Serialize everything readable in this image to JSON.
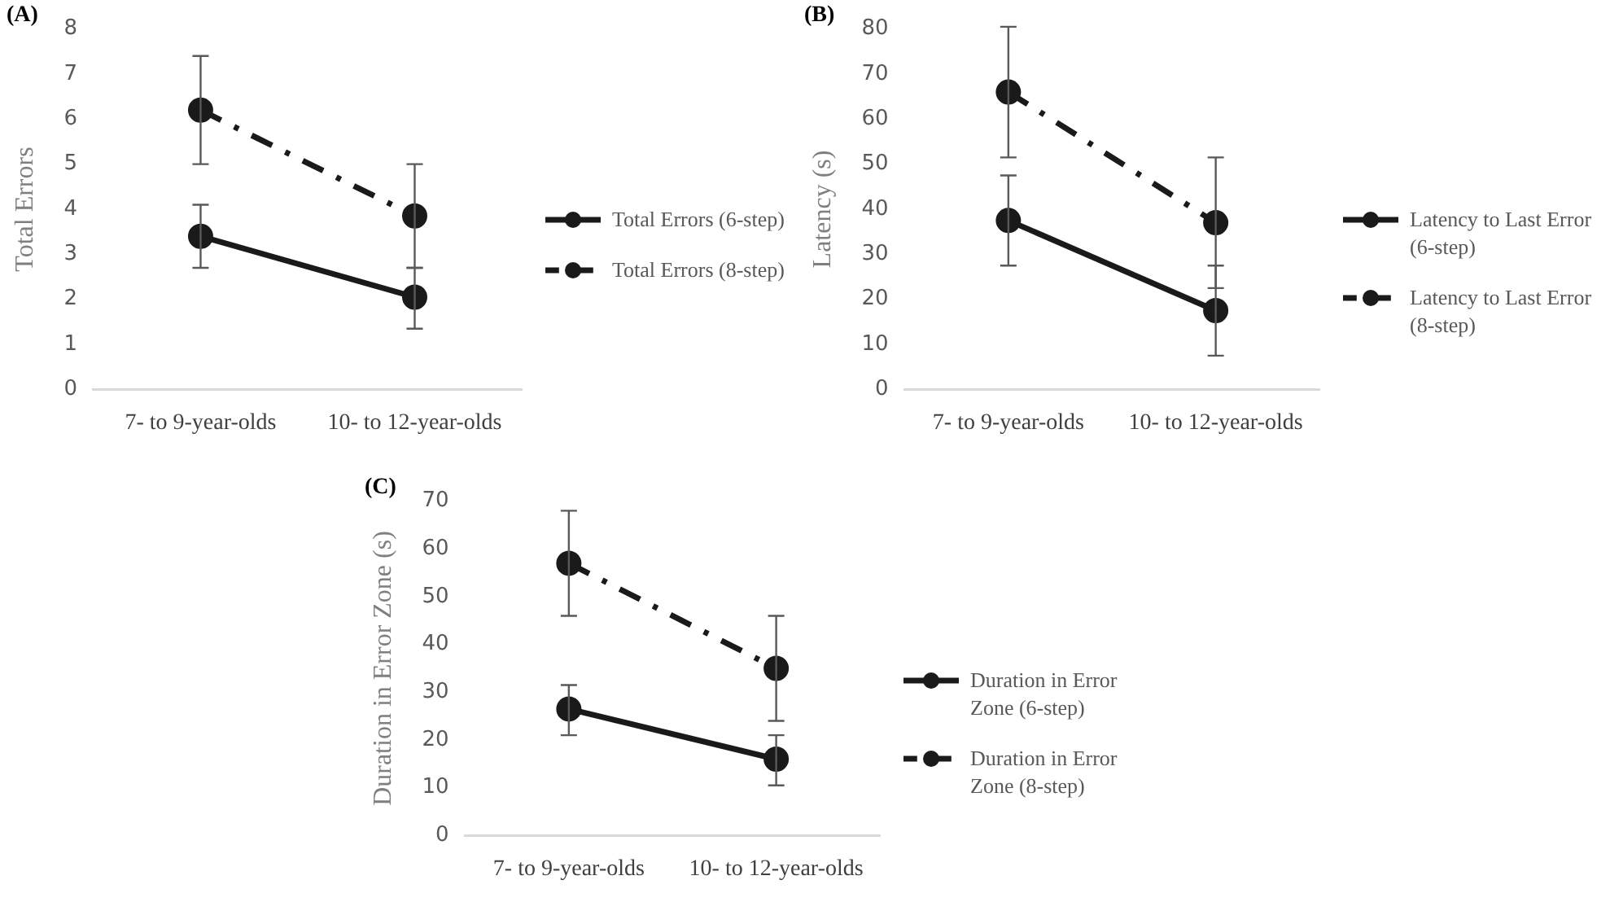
{
  "chart_data": [
    {
      "type": "line",
      "title": "(A)",
      "ylabel": "Total Errors",
      "categories": [
        "7- to 9-year-olds",
        "10- to 12-year-olds"
      ],
      "ylim": [
        0,
        8
      ],
      "yticks": [
        0,
        1,
        2,
        3,
        4,
        5,
        6,
        7,
        8
      ],
      "grid": false,
      "legend": "right",
      "marker": "circle",
      "series": [
        {
          "name": "Total Errors (6-step)",
          "color": "#1a1a1a",
          "line_style": "solid",
          "values": [
            3.4,
            2.05
          ],
          "errors": [
            [
              2.7,
              4.1
            ],
            [
              1.35,
              2.7
            ]
          ]
        },
        {
          "name": "Total Errors (8-step)",
          "color": "#1a1a1a",
          "line_style": "dashed",
          "values": [
            6.2,
            3.85
          ],
          "errors": [
            [
              5.0,
              7.4
            ],
            [
              2.7,
              5.0
            ]
          ]
        }
      ]
    },
    {
      "type": "line",
      "title": "(B)",
      "ylabel": "Latency (s)",
      "categories": [
        "7- to 9-year-olds",
        "10- to 12-year-olds"
      ],
      "ylim": [
        0,
        80
      ],
      "yticks": [
        0,
        10,
        20,
        30,
        40,
        50,
        60,
        70,
        80
      ],
      "grid": false,
      "legend": "right",
      "marker": "circle",
      "series": [
        {
          "name": "Latency to Last Error (6-step)",
          "color": "#1a1a1a",
          "line_style": "solid",
          "values": [
            37.5,
            17.5
          ],
          "errors": [
            [
              27.5,
              47.5
            ],
            [
              7.5,
              27.5
            ]
          ]
        },
        {
          "name": "Latency to Last Error (8-step)",
          "color": "#1a1a1a",
          "line_style": "dashed",
          "values": [
            66,
            37
          ],
          "errors": [
            [
              51.5,
              80.5
            ],
            [
              22.5,
              51.5
            ]
          ]
        }
      ]
    },
    {
      "type": "line",
      "title": "(C)",
      "ylabel": "Duration in Error Zone (s)",
      "categories": [
        "7- to 9-year-olds",
        "10- to 12-year-olds"
      ],
      "ylim": [
        0,
        70
      ],
      "yticks": [
        0,
        10,
        20,
        30,
        40,
        50,
        60,
        70
      ],
      "grid": false,
      "legend": "right",
      "marker": "circle",
      "series": [
        {
          "name": "Duration in Error Zone (6-step)",
          "color": "#1a1a1a",
          "line_style": "solid",
          "values": [
            26.5,
            16
          ],
          "errors": [
            [
              21,
              31.5
            ],
            [
              10.5,
              21
            ]
          ]
        },
        {
          "name": "Duration in Error Zone (8-step)",
          "color": "#1a1a1a",
          "line_style": "dashed",
          "values": [
            57,
            35
          ],
          "errors": [
            [
              46,
              68
            ],
            [
              24,
              46
            ]
          ]
        }
      ]
    }
  ]
}
